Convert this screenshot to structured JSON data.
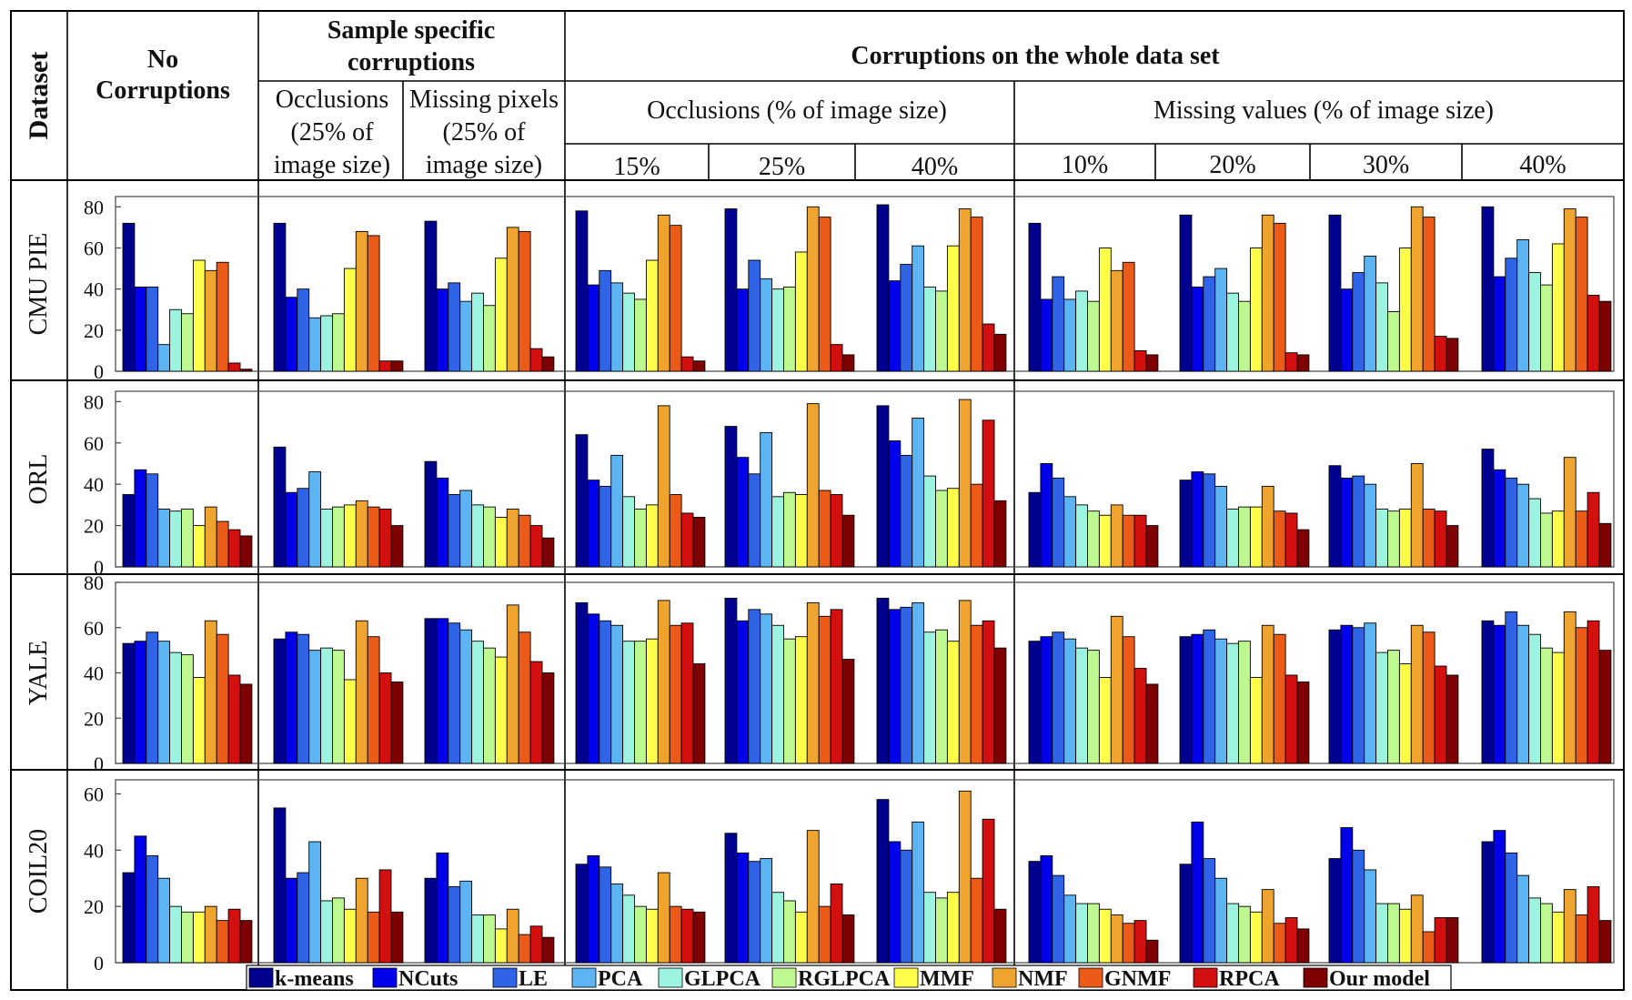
{
  "header": {
    "dataset_label": "Dataset",
    "no_corruptions": [
      "No",
      "Corruptions"
    ],
    "sample_specific": [
      "Sample specific",
      "corruptions"
    ],
    "sample_occlusions": [
      "Occlusions",
      "(25% of",
      "image size)"
    ],
    "sample_missing": [
      "Missing pixels",
      "(25% of",
      "image size)"
    ],
    "whole_data_set": "Corruptions on the whole data set",
    "occlusions_group": "Occlusions (% of image size)",
    "missing_group": "Missing values (% of image size)",
    "occlusion_levels": [
      "15%",
      "25%",
      "40%"
    ],
    "missing_levels": [
      "10%",
      "20%",
      "30%",
      "40%"
    ]
  },
  "methods": [
    "k-means",
    "NCuts",
    "LE",
    "PCA",
    "GLPCA",
    "RGLPCA",
    "MMF",
    "NMF",
    "GNMF",
    "RPCA",
    "Our model"
  ],
  "colors": [
    "#00008f",
    "#0000ea",
    "#2f64e6",
    "#5cb4f2",
    "#9cf4e0",
    "#bef890",
    "#ffff4a",
    "#f0a430",
    "#ec5a18",
    "#d21010",
    "#7f0000"
  ],
  "chart_data": {
    "type": "bar",
    "columns": [
      "No Corruptions",
      "Occlusions (25% of image size)",
      "Missing pixels (25% of image size)",
      "Occlusions 15%",
      "Occlusions 25%",
      "Occlusions 40%",
      "Missing values 10%",
      "Missing values 20%",
      "Missing values 30%",
      "Missing values 40%"
    ],
    "rows": [
      {
        "dataset": "CMU PIE",
        "yticks": [
          0,
          20,
          40,
          60,
          80
        ],
        "ylim": [
          0,
          85
        ],
        "values": [
          [
            72,
            41,
            41,
            13,
            30,
            28,
            54,
            49,
            53,
            4,
            1
          ],
          [
            72,
            36,
            40,
            26,
            27,
            28,
            50,
            68,
            66,
            5,
            5
          ],
          [
            73,
            40,
            43,
            34,
            38,
            32,
            55,
            70,
            68,
            11,
            7
          ],
          [
            78,
            42,
            49,
            43,
            38,
            35,
            54,
            76,
            71,
            7,
            5
          ],
          [
            79,
            40,
            54,
            45,
            40,
            41,
            58,
            80,
            75,
            13,
            8
          ],
          [
            81,
            44,
            52,
            61,
            41,
            39,
            61,
            79,
            75,
            23,
            18
          ],
          [
            72,
            35,
            46,
            35,
            39,
            34,
            60,
            49,
            53,
            10,
            8
          ],
          [
            76,
            41,
            46,
            50,
            38,
            34,
            60,
            76,
            72,
            9,
            8
          ],
          [
            76,
            40,
            48,
            56,
            43,
            29,
            60,
            80,
            75,
            17,
            16
          ],
          [
            80,
            46,
            55,
            64,
            48,
            42,
            62,
            79,
            75,
            37,
            34
          ]
        ]
      },
      {
        "dataset": "ORL",
        "yticks": [
          0,
          20,
          40,
          60,
          80
        ],
        "ylim": [
          0,
          85
        ],
        "values": [
          [
            35,
            47,
            45,
            28,
            27,
            28,
            20,
            29,
            22,
            18,
            15
          ],
          [
            58,
            36,
            38,
            46,
            28,
            29,
            30,
            32,
            29,
            28,
            20
          ],
          [
            51,
            43,
            35,
            37,
            30,
            29,
            24,
            28,
            25,
            20,
            14
          ],
          [
            64,
            42,
            39,
            54,
            34,
            28,
            30,
            78,
            35,
            26,
            24
          ],
          [
            68,
            53,
            45,
            65,
            34,
            36,
            35,
            79,
            37,
            35,
            25
          ],
          [
            78,
            61,
            54,
            72,
            44,
            37,
            38,
            81,
            40,
            71,
            32
          ],
          [
            36,
            50,
            43,
            34,
            30,
            27,
            25,
            30,
            25,
            25,
            20
          ],
          [
            42,
            46,
            45,
            39,
            28,
            29,
            29,
            39,
            27,
            26,
            18
          ],
          [
            49,
            43,
            44,
            40,
            28,
            27,
            28,
            50,
            28,
            27,
            20
          ],
          [
            57,
            47,
            43,
            40,
            33,
            26,
            27,
            53,
            27,
            36,
            21
          ]
        ]
      },
      {
        "dataset": "YALE",
        "yticks": [
          0,
          20,
          40,
          60,
          80
        ],
        "ylim": [
          0,
          80
        ],
        "values": [
          [
            53,
            54,
            58,
            54,
            49,
            48,
            38,
            63,
            57,
            39,
            35
          ],
          [
            55,
            58,
            57,
            50,
            51,
            50,
            37,
            63,
            56,
            40,
            36
          ],
          [
            64,
            64,
            62,
            59,
            54,
            51,
            47,
            70,
            58,
            45,
            40
          ],
          [
            71,
            66,
            63,
            61,
            54,
            54,
            55,
            72,
            61,
            62,
            44
          ],
          [
            73,
            63,
            68,
            66,
            61,
            55,
            56,
            71,
            65,
            68,
            46
          ],
          [
            73,
            68,
            69,
            71,
            58,
            59,
            54,
            72,
            61,
            63,
            51
          ],
          [
            54,
            56,
            58,
            55,
            51,
            50,
            38,
            65,
            56,
            42,
            35
          ],
          [
            56,
            57,
            59,
            55,
            53,
            54,
            38,
            61,
            57,
            39,
            36
          ],
          [
            59,
            61,
            60,
            62,
            49,
            50,
            44,
            61,
            58,
            43,
            39
          ],
          [
            63,
            61,
            67,
            61,
            57,
            51,
            49,
            67,
            60,
            63,
            50
          ]
        ]
      },
      {
        "dataset": "COIL20",
        "yticks": [
          0,
          20,
          40,
          60
        ],
        "ylim": [
          0,
          65
        ],
        "values": [
          [
            32,
            45,
            38,
            30,
            20,
            18,
            18,
            20,
            15,
            19,
            15
          ],
          [
            55,
            30,
            32,
            43,
            22,
            23,
            19,
            30,
            18,
            33,
            18
          ],
          [
            30,
            39,
            27,
            29,
            17,
            17,
            12,
            19,
            10,
            13,
            9
          ],
          [
            35,
            38,
            34,
            28,
            24,
            20,
            19,
            32,
            20,
            19,
            18
          ],
          [
            46,
            39,
            36,
            37,
            25,
            22,
            18,
            47,
            20,
            28,
            17
          ],
          [
            58,
            43,
            40,
            50,
            25,
            23,
            25,
            61,
            30,
            51,
            19
          ],
          [
            36,
            38,
            31,
            24,
            21,
            21,
            19,
            17,
            14,
            15,
            8
          ],
          [
            35,
            50,
            37,
            30,
            21,
            20,
            18,
            26,
            14,
            16,
            12
          ],
          [
            37,
            48,
            40,
            33,
            21,
            21,
            19,
            24,
            11,
            16,
            16
          ],
          [
            43,
            47,
            39,
            31,
            23,
            21,
            18,
            26,
            17,
            27,
            15
          ]
        ]
      }
    ]
  }
}
